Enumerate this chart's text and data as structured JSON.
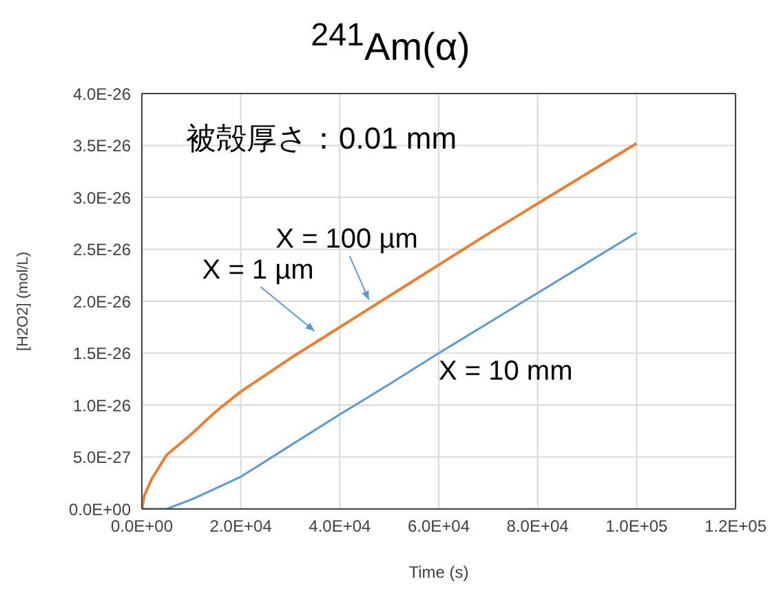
{
  "chart_data": {
    "type": "line",
    "title": "$^{241}$Am(α)",
    "xlabel": "Time (s)",
    "ylabel": "[H2O2] (mol/L)",
    "xlim": [
      0,
      120000
    ],
    "xticks": [
      {
        "value": 0,
        "label": "0.0E+00"
      },
      {
        "value": 20000,
        "label": "2.0E+04"
      },
      {
        "value": 40000,
        "label": "4.0E+04"
      },
      {
        "value": 60000,
        "label": "6.0E+04"
      },
      {
        "value": 80000,
        "label": "8.0E+04"
      },
      {
        "value": 100000,
        "label": "1.0E+05"
      },
      {
        "value": 120000,
        "label": "1.2E+05"
      }
    ],
    "ylim": [
      0,
      4e-26
    ],
    "yticks": [
      {
        "value": 0,
        "label": "0.0E+00"
      },
      {
        "value": 5e-27,
        "label": "5.0E-27"
      },
      {
        "value": 1e-26,
        "label": "1.0E-26"
      },
      {
        "value": 1.5e-26,
        "label": "1.5E-26"
      },
      {
        "value": 2e-26,
        "label": "2.0E-26"
      },
      {
        "value": 2.5e-26,
        "label": "2.5E-26"
      },
      {
        "value": 3e-26,
        "label": "3.0E-26"
      },
      {
        "value": 3.5e-26,
        "label": "3.5E-26"
      },
      {
        "value": 4e-26,
        "label": "4.0E-26"
      }
    ],
    "grid": true,
    "legend": false,
    "marker": "none",
    "line_style": "solid",
    "series": [
      {
        "color": "#ed7d31",
        "x": [
          0,
          500,
          2000,
          5000,
          10000,
          15000,
          20000,
          30000,
          40000,
          50000,
          60000,
          70000,
          80000,
          90000,
          100000
        ],
        "values": [
          0,
          1.3e-27,
          2.9e-27,
          5.2e-27,
          7.2e-27,
          9.4e-27,
          1.13e-26,
          1.45e-26,
          1.75e-26,
          2.05e-26,
          2.35e-26,
          2.65e-26,
          2.94e-26,
          3.23e-26,
          3.52e-26
        ]
      },
      {
        "name": "X = 10 mm",
        "color": "#5b9bd5",
        "x": [
          0,
          5000,
          10000,
          15000,
          20000,
          30000,
          40000,
          50000,
          60000,
          70000,
          80000,
          90000,
          100000
        ],
        "values": [
          0,
          0,
          9e-28,
          2e-27,
          3.1e-27,
          6.1e-27,
          9.1e-27,
          1.2e-26,
          1.5e-26,
          1.79e-26,
          2.08e-26,
          2.37e-26,
          2.66e-26
        ]
      }
    ],
    "annotations": [
      "被殻厚さ：0.01 mm",
      {
        "text": "X = 100 µm",
        "x": 47000,
        "y": 1.96e-26
      },
      {
        "text": "X = 1 µm",
        "x": 36000,
        "y": 1.66e-26
      }
    ]
  }
}
